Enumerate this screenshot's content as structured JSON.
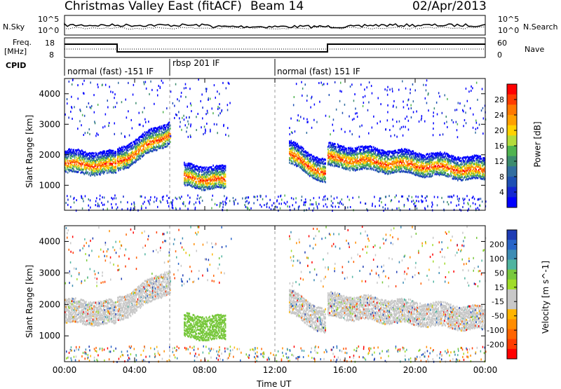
{
  "header": {
    "station": "Christmas Valley East (fitACF)",
    "beam": "Beam 14",
    "date": "02/Apr/2013"
  },
  "strip": {
    "nsky_label": "N.Sky",
    "nsearch_label": "N.Search",
    "noise_ticks": [
      "10^5",
      "10^0"
    ],
    "noise_ticks_right": [
      "10^5",
      "10^0"
    ],
    "freq_label_line1": "Freq.",
    "freq_label_line2": "[MHz]",
    "freq_ticks": [
      "18",
      "8"
    ],
    "nave_label": "Nave",
    "nave_ticks": [
      "60",
      "0"
    ],
    "cpid_label": "CPID",
    "cpid_segments": [
      {
        "label": "normal (fast) -151 IF",
        "start_h": 0,
        "end_h": 6
      },
      {
        "label": "rbsp 201 IF",
        "start_h": 6,
        "end_h": 12
      },
      {
        "label": "normal (fast) 151 IF",
        "start_h": 12,
        "end_h": 24
      }
    ]
  },
  "chart_data": [
    {
      "type": "heatmap",
      "title": "",
      "xlabel": "Time UT",
      "ylabel": "Slant Range [km]",
      "xlim": [
        0,
        24
      ],
      "ylim": [
        180,
        4500
      ],
      "x_tick_labels": [
        "00:00",
        "04:00",
        "08:00",
        "12:00",
        "16:00",
        "20:00",
        "00:00"
      ],
      "y_ticks": [
        1000,
        2000,
        3000,
        4000
      ],
      "colorbar_label": "Power [dB]",
      "colorbar_ticks": [
        "28",
        "24",
        "20",
        "16",
        "12",
        "8",
        "4"
      ],
      "colorbar_colors": [
        "#ff0000",
        "#ff3c00",
        "#ff7800",
        "#ffa000",
        "#ffd200",
        "#b4dc3c",
        "#50b450",
        "#3c8c6e",
        "#326ea0",
        "#1e50b4",
        "#1428d2",
        "#0000ff"
      ],
      "echo_bands": [
        {
          "start_h": 0.0,
          "end_h": 2.9,
          "range_km_start": 1700,
          "range_km_end": 1650
        },
        {
          "start_h": 3.0,
          "end_h": 6.0,
          "range_km_start": 1750,
          "range_km_end": 2700
        },
        {
          "start_h": 6.8,
          "end_h": 9.2,
          "range_km_start": 1250,
          "range_km_end": 1150
        },
        {
          "start_h": 12.8,
          "end_h": 14.9,
          "range_km_start": 2000,
          "range_km_end": 1350
        },
        {
          "start_h": 15.0,
          "end_h": 24.0,
          "range_km_start": 1900,
          "range_km_end": 1450
        }
      ]
    },
    {
      "type": "heatmap",
      "title": "",
      "xlabel": "Time UT",
      "ylabel": "Slant Range [km]",
      "xlim": [
        0,
        24
      ],
      "ylim": [
        180,
        4500
      ],
      "x_tick_labels": [
        "00:00",
        "04:00",
        "08:00",
        "12:00",
        "16:00",
        "20:00",
        "00:00"
      ],
      "y_ticks": [
        1000,
        2000,
        3000,
        4000
      ],
      "colorbar_label": "Velocity [m s^-1]",
      "colorbar_ticks": [
        "200",
        "100",
        "50",
        "15",
        "-15",
        "-50",
        "-100",
        "-200"
      ],
      "colorbar_colors": [
        "#1e3cb4",
        "#2864c8",
        "#3c8cb4",
        "#50b4a0",
        "#78c83c",
        "#a0dc28",
        "#c8c8c8",
        "#c8c8c8",
        "#ffb400",
        "#ff8c00",
        "#ff6400",
        "#ff3c00",
        "#ff0000"
      ]
    }
  ]
}
